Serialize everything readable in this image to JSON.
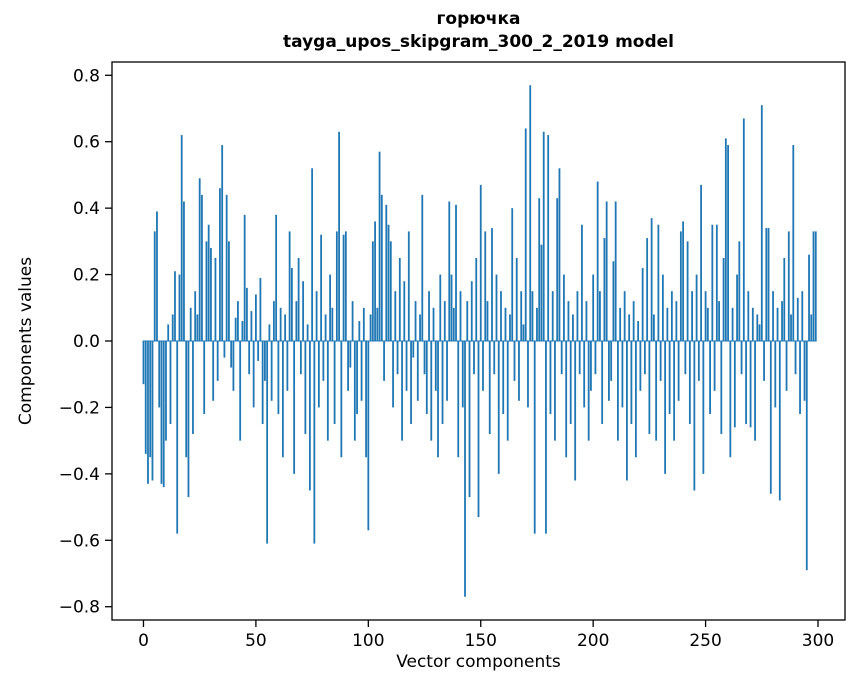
{
  "chart_data": {
    "type": "bar",
    "title": "горючка",
    "subtitle": "tayga_upos_skipgram_300_2_2019 model",
    "xlabel": "Vector components",
    "ylabel": "Components values",
    "bar_color": "#1f77b4",
    "grid": false,
    "legend": "none",
    "xlim": [
      -14,
      312
    ],
    "ylim": [
      -0.84,
      0.84
    ],
    "x_ticks": [
      0,
      50,
      100,
      150,
      200,
      250,
      300
    ],
    "x_tick_labels": [
      "0",
      "50",
      "100",
      "150",
      "200",
      "250",
      "300"
    ],
    "y_ticks": [
      -0.8,
      -0.6,
      -0.4,
      -0.2,
      0.0,
      0.2,
      0.4,
      0.6,
      0.8
    ],
    "y_tick_labels": [
      "−0.8",
      "−0.6",
      "−0.4",
      "−0.2",
      "0.0",
      "0.2",
      "0.4",
      "0.6",
      "0.8"
    ],
    "values": [
      -0.13,
      -0.34,
      -0.43,
      -0.35,
      -0.42,
      0.33,
      0.39,
      -0.2,
      -0.43,
      -0.44,
      -0.3,
      0.05,
      -0.25,
      0.08,
      0.21,
      -0.58,
      0.2,
      0.62,
      0.42,
      -0.35,
      -0.47,
      0.1,
      -0.28,
      0.15,
      0.08,
      0.49,
      0.44,
      -0.22,
      0.3,
      0.35,
      0.28,
      -0.18,
      0.25,
      -0.12,
      0.46,
      0.59,
      -0.05,
      0.44,
      0.3,
      -0.08,
      -0.15,
      0.07,
      0.12,
      -0.3,
      0.06,
      0.38,
      0.16,
      -0.1,
      0.09,
      -0.2,
      0.14,
      -0.06,
      0.19,
      -0.25,
      -0.12,
      -0.61,
      0.05,
      -0.18,
      0.12,
      0.38,
      -0.22,
      0.1,
      -0.35,
      0.08,
      -0.15,
      0.33,
      0.22,
      -0.4,
      0.12,
      0.25,
      -0.1,
      0.18,
      -0.28,
      0.05,
      -0.45,
      0.52,
      -0.61,
      0.15,
      -0.2,
      0.32,
      -0.12,
      0.08,
      -0.3,
      0.2,
      0.1,
      -0.25,
      0.33,
      0.63,
      -0.35,
      0.32,
      0.33,
      -0.15,
      -0.08,
      0.12,
      -0.3,
      -0.22,
      0.06,
      -0.18,
      0.1,
      -0.35,
      -0.57,
      0.08,
      0.3,
      0.36,
      0.1,
      0.57,
      0.44,
      -0.12,
      0.41,
      0.35,
      0.3,
      -0.2,
      0.15,
      -0.1,
      0.25,
      -0.3,
      0.18,
      -0.15,
      0.33,
      -0.25,
      -0.05,
      0.12,
      -0.18,
      0.08,
      0.44,
      -0.1,
      -0.22,
      0.15,
      -0.3,
      0.1,
      -0.15,
      -0.35,
      0.2,
      -0.25,
      0.12,
      -0.18,
      0.42,
      0.2,
      0.1,
      0.41,
      -0.35,
      0.15,
      -0.2,
      -0.77,
      0.12,
      -0.47,
      0.18,
      -0.1,
      0.25,
      -0.53,
      0.47,
      -0.15,
      0.33,
      0.12,
      -0.28,
      0.34,
      -0.1,
      0.2,
      -0.4,
      0.15,
      -0.22,
      0.1,
      -0.3,
      0.08,
      0.4,
      -0.12,
      0.25,
      -0.18,
      0.15,
      0.05,
      0.64,
      -0.2,
      0.77,
      0.15,
      -0.58,
      0.1,
      0.43,
      0.29,
      0.63,
      -0.58,
      0.62,
      -0.22,
      0.15,
      -0.3,
      0.43,
      0.52,
      -0.1,
      0.2,
      -0.35,
      0.12,
      -0.25,
      0.08,
      -0.42,
      0.15,
      -0.1,
      0.35,
      -0.2,
      0.12,
      -0.3,
      -0.15,
      0.2,
      -0.1,
      0.48,
      0.15,
      -0.25,
      0.31,
      0.42,
      -0.18,
      -0.12,
      0.24,
      0.42,
      -0.3,
      0.1,
      -0.2,
      0.15,
      -0.42,
      0.08,
      -0.25,
      0.12,
      -0.35,
      0.06,
      -0.15,
      0.22,
      -0.1,
      0.31,
      -0.28,
      0.37,
      0.08,
      -0.3,
      0.35,
      -0.12,
      0.2,
      -0.4,
      0.1,
      -0.22,
      0.15,
      -0.3,
      0.12,
      -0.18,
      0.33,
      0.36,
      -0.1,
      0.3,
      -0.25,
      0.15,
      -0.45,
      0.2,
      -0.12,
      0.47,
      -0.4,
      0.15,
      0.1,
      -0.22,
      0.35,
      -0.15,
      0.35,
      0.12,
      -0.28,
      0.25,
      0.61,
      0.59,
      -0.35,
      0.1,
      -0.26,
      0.2,
      0.3,
      -0.1,
      0.67,
      -0.25,
      0.15,
      -0.26,
      0.1,
      -0.3,
      0.08,
      0.05,
      0.71,
      -0.12,
      0.34,
      0.34,
      -0.46,
      0.15,
      -0.2,
      0.1,
      -0.48,
      0.12,
      0.25,
      -0.15,
      0.33,
      0.08,
      0.59,
      -0.1,
      0.13,
      -0.22,
      0.15,
      -0.18,
      -0.69,
      0.26,
      0.08,
      0.33,
      0.33
    ]
  }
}
